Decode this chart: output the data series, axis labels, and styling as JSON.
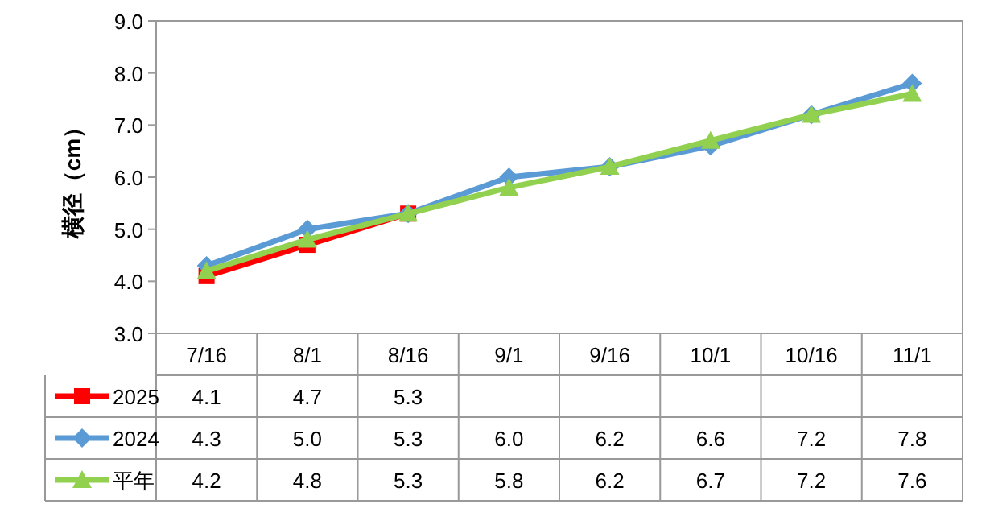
{
  "chart_data": {
    "type": "line",
    "ylabel": "横径（cm）",
    "categories": [
      "7/16",
      "8/1",
      "8/16",
      "9/1",
      "9/16",
      "10/1",
      "10/16",
      "11/1"
    ],
    "ylim": [
      3,
      9
    ],
    "yticks": [
      {
        "value": 3,
        "label": "3.0"
      },
      {
        "value": 4,
        "label": "4.0"
      },
      {
        "value": 5,
        "label": "5.0"
      },
      {
        "value": 6,
        "label": "6.0"
      },
      {
        "value": 7,
        "label": "7.0"
      },
      {
        "value": 8,
        "label": "8.0"
      },
      {
        "value": 9,
        "label": "9.0"
      }
    ],
    "legend": "bottom left",
    "series": [
      {
        "name": "2025",
        "color": "#ff0000",
        "marker": "square",
        "values": [
          4.1,
          4.7,
          5.3,
          null,
          null,
          null,
          null,
          null
        ],
        "value_labels": [
          "4.1",
          "4.7",
          "5.3",
          null,
          null,
          null,
          null,
          null
        ]
      },
      {
        "name": "2024",
        "color": "#5b9bd5",
        "marker": "diamond",
        "values": [
          4.3,
          5.0,
          5.3,
          6.0,
          6.2,
          6.6,
          7.2,
          7.8
        ],
        "value_labels": [
          "4.3",
          "5.0",
          "5.3",
          "6.0",
          "6.2",
          "6.6",
          "7.2",
          "7.8"
        ]
      },
      {
        "name": "平年",
        "color": "#92d050",
        "marker": "triangle",
        "values": [
          4.2,
          4.8,
          5.3,
          5.8,
          6.2,
          6.7,
          7.2,
          7.6
        ],
        "value_labels": [
          "4.2",
          "4.8",
          "5.3",
          "5.8",
          "6.2",
          "6.7",
          "7.2",
          "7.6"
        ]
      }
    ]
  }
}
